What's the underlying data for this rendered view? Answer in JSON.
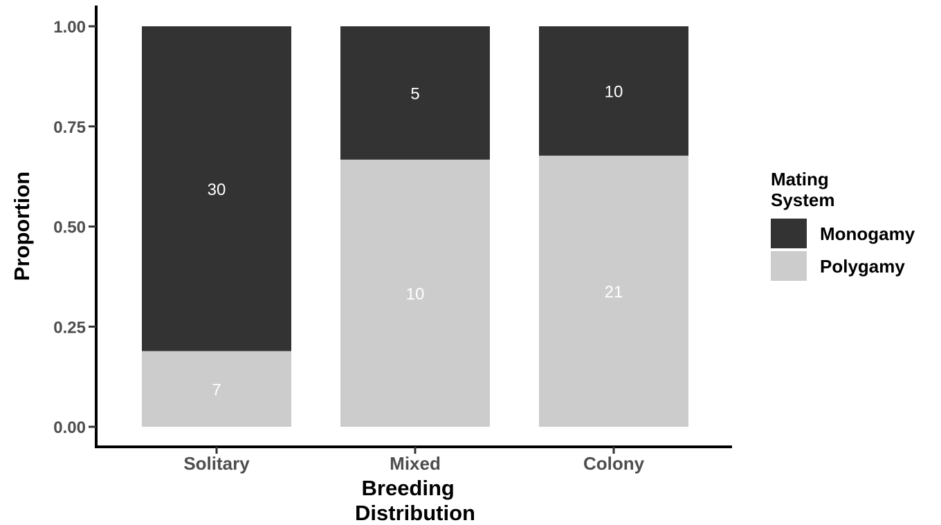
{
  "chart_data": {
    "type": "bar",
    "stacked": true,
    "ylabel": "Proportion",
    "xlabel_lines": [
      "Breeding",
      "Distribution"
    ],
    "ylim": [
      0,
      1
    ],
    "yticks": [
      "0.00",
      "0.25",
      "0.50",
      "0.75",
      "1.00"
    ],
    "categories": [
      "Solitary",
      "Mixed",
      "Colony"
    ],
    "series": [
      {
        "name": "Polygamy",
        "color": "#cccccc",
        "counts": [
          7,
          10,
          21
        ],
        "values": [
          0.189,
          0.667,
          0.677
        ]
      },
      {
        "name": "Monogamy",
        "color": "#333333",
        "counts": [
          30,
          5,
          10
        ],
        "values": [
          0.811,
          0.333,
          0.323
        ]
      }
    ],
    "data_labels": true,
    "legend": {
      "title_lines": [
        "Mating",
        "System"
      ],
      "placement": "right",
      "order": [
        "Monogamy",
        "Polygamy"
      ]
    },
    "grid": false
  }
}
